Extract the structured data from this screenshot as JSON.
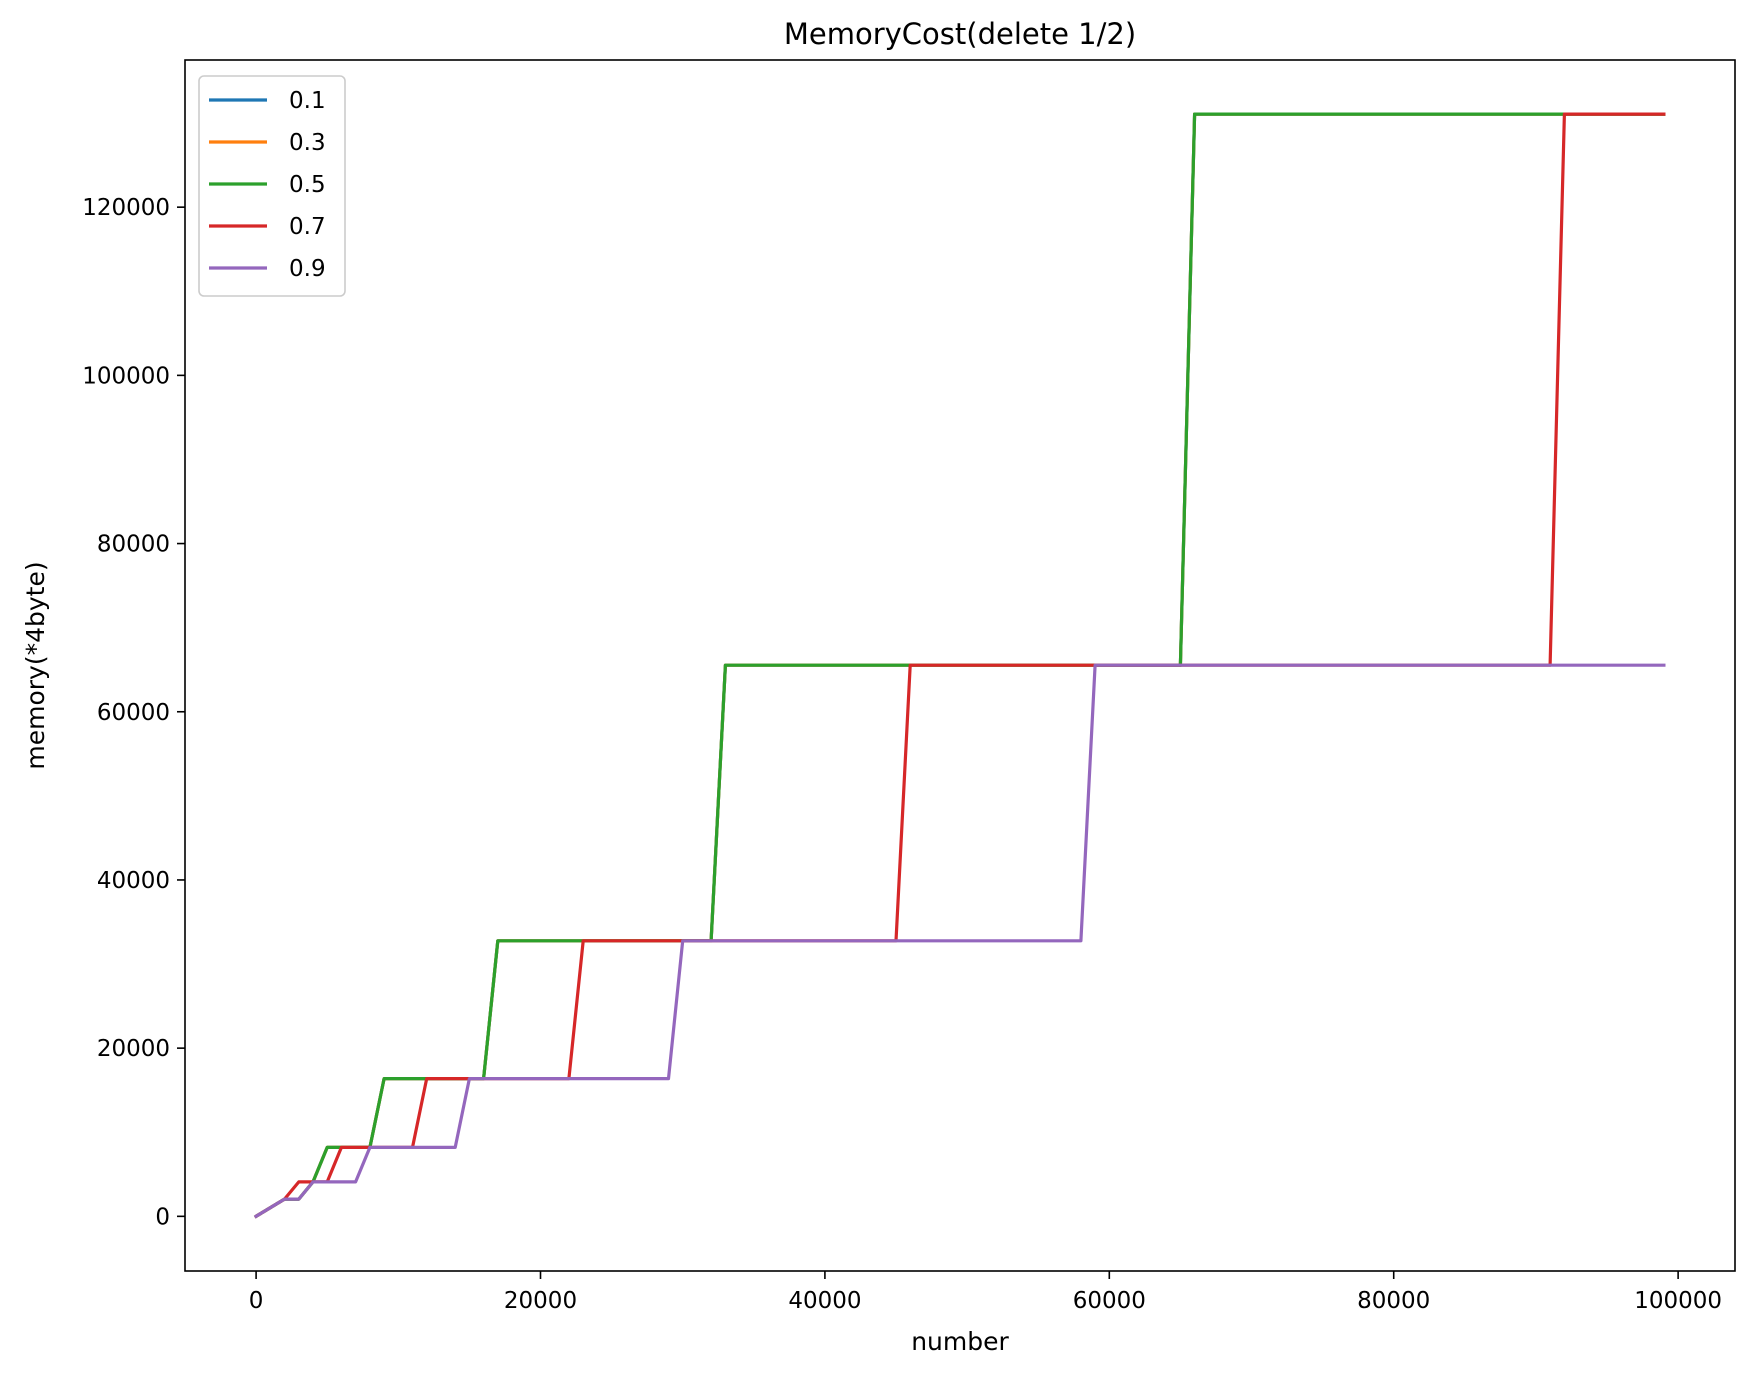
{
  "chart_data": {
    "type": "line",
    "title": "MemoryCost(delete 1/2)",
    "xlabel": "number",
    "ylabel": "memory(*4byte)",
    "xlim": [
      -5000,
      104000
    ],
    "ylim": [
      -6500,
      137500
    ],
    "xticks": [
      0,
      20000,
      40000,
      60000,
      80000,
      100000
    ],
    "yticks": [
      0,
      20000,
      40000,
      60000,
      80000,
      100000,
      120000
    ],
    "grid": false,
    "legend_position": "top-left",
    "series": [
      {
        "name": "0.1",
        "color": "#1f77b4",
        "x": [
          0,
          2000,
          3000,
          4000,
          5000,
          8000,
          9000,
          16000,
          17000,
          32000,
          33000,
          65000,
          66000,
          99000
        ],
        "y": [
          0,
          2048,
          2048,
          4096,
          8192,
          8192,
          16384,
          16384,
          32768,
          32768,
          65536,
          65536,
          131072,
          131072
        ]
      },
      {
        "name": "0.3",
        "color": "#ff7f0e",
        "x": [
          0,
          2000,
          3000,
          4000,
          5000,
          8000,
          9000,
          16000,
          17000,
          32000,
          33000,
          65000,
          66000,
          99000
        ],
        "y": [
          0,
          2048,
          2048,
          4096,
          8192,
          8192,
          16384,
          16384,
          32768,
          32768,
          65536,
          65536,
          131072,
          131072
        ]
      },
      {
        "name": "0.5",
        "color": "#2ca02c",
        "x": [
          0,
          2000,
          3000,
          4000,
          5000,
          8000,
          9000,
          16000,
          17000,
          32000,
          33000,
          65000,
          66000,
          99000
        ],
        "y": [
          0,
          2048,
          2048,
          4096,
          8192,
          8192,
          16384,
          16384,
          32768,
          32768,
          65536,
          65536,
          131072,
          131072
        ]
      },
      {
        "name": "0.7",
        "color": "#d62728",
        "x": [
          0,
          2000,
          3000,
          5000,
          6000,
          11000,
          12000,
          22000,
          23000,
          45000,
          46000,
          91000,
          92000,
          99000
        ],
        "y": [
          0,
          2048,
          4096,
          4096,
          8192,
          8192,
          16384,
          16384,
          32768,
          32768,
          65536,
          65536,
          131072,
          131072
        ]
      },
      {
        "name": "0.9",
        "color": "#9467bd",
        "x": [
          0,
          2000,
          3000,
          4000,
          7000,
          8000,
          14000,
          15000,
          29000,
          30000,
          58000,
          59000,
          99000
        ],
        "y": [
          0,
          2048,
          2048,
          4096,
          4096,
          8192,
          8192,
          16384,
          16384,
          32768,
          32768,
          65536,
          65536
        ]
      }
    ]
  }
}
